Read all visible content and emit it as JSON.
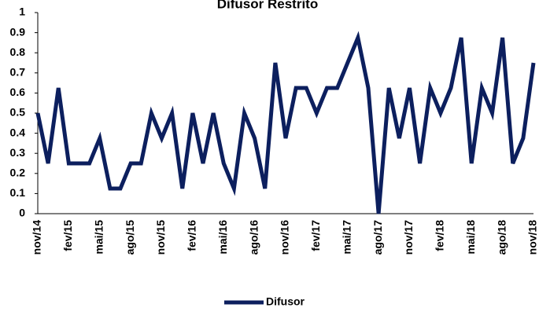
{
  "chart_data": {
    "type": "line",
    "title": "Difusor  Restrito",
    "categories": [
      "nov/14",
      null,
      null,
      "fev/15",
      null,
      null,
      "mai/15",
      null,
      null,
      "ago/15",
      null,
      null,
      "nov/15",
      null,
      null,
      "fev/16",
      null,
      null,
      "mai/16",
      null,
      null,
      "ago/16",
      null,
      null,
      "nov/16",
      null,
      null,
      "fev/17",
      null,
      null,
      "mai/17",
      null,
      null,
      "ago/17",
      null,
      null,
      "nov/17",
      null,
      null,
      "fev/18",
      null,
      null,
      "mai/18",
      null,
      null,
      "ago/18",
      null,
      null,
      "nov/18"
    ],
    "series": [
      {
        "name": "Difusor",
        "color": "#0c1f5e",
        "values": [
          0.5,
          0.25,
          0.625,
          0.25,
          0.25,
          0.25,
          0.375,
          0.125,
          0.125,
          0.25,
          0.25,
          0.5,
          0.375,
          0.5,
          0.125,
          0.5,
          0.25,
          0.5,
          0.25,
          0.125,
          0.5,
          0.375,
          0.125,
          0.75,
          0.375,
          0.625,
          0.625,
          0.5,
          0.625,
          0.625,
          0.75,
          0.875,
          0.625,
          0,
          0.625,
          0.375,
          0.625,
          0.25,
          0.625,
          0.5,
          0.625,
          0.875,
          0.25,
          0.625,
          0.5,
          0.875,
          0.25,
          0.375,
          0.75
        ]
      }
    ],
    "ylim": [
      0,
      1
    ],
    "yticks": [
      0,
      0.1,
      0.2,
      0.3,
      0.4,
      0.5,
      0.6,
      0.7,
      0.8,
      0.9,
      1
    ],
    "legend": "bottom"
  }
}
